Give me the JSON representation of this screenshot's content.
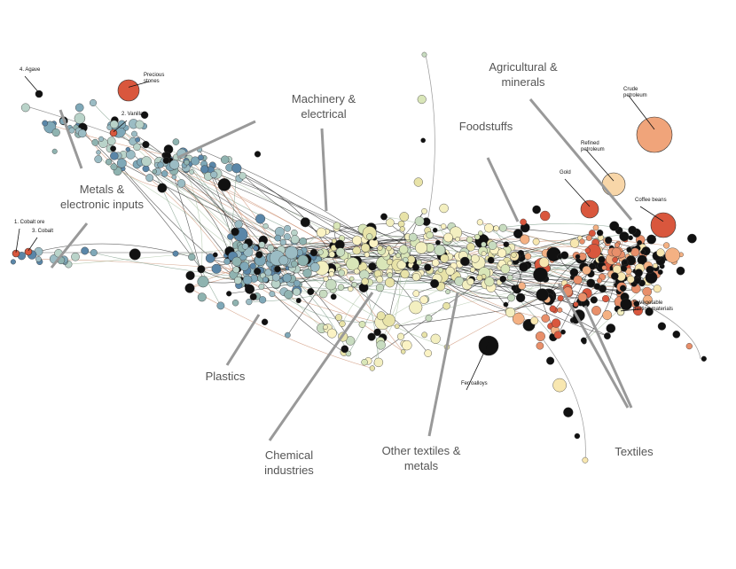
{
  "clusters": [
    {
      "label": [
        "Agricultural &",
        "minerals"
      ]
    },
    {
      "label": [
        "Foodstuffs"
      ]
    },
    {
      "label": [
        "Machinery &",
        "electrical"
      ]
    },
    {
      "label": [
        "Metals &",
        "electronic inputs"
      ]
    },
    {
      "label": [
        "Plastics"
      ]
    },
    {
      "label": [
        "Chemical",
        "industries"
      ]
    },
    {
      "label": [
        "Other textiles &",
        "metals"
      ]
    },
    {
      "label": [
        "Textiles"
      ]
    }
  ],
  "products": [
    {
      "label": [
        "4. Agave"
      ]
    },
    {
      "label": [
        "Precious",
        "stones"
      ]
    },
    {
      "label": [
        "2. Vanilla"
      ]
    },
    {
      "label": [
        "1. Cobalt ore"
      ]
    },
    {
      "label": [
        "3. Cobalt"
      ]
    },
    {
      "label": [
        "Crude",
        "petroleum"
      ]
    },
    {
      "label": [
        "Refined",
        "petroleum"
      ]
    },
    {
      "label": [
        "Gold"
      ]
    },
    {
      "label": [
        "Coffee beans"
      ]
    },
    {
      "label": [
        "5. Vegetable",
        "plaiting materials"
      ]
    },
    {
      "label": [
        "Ferroalloys"
      ]
    }
  ]
}
